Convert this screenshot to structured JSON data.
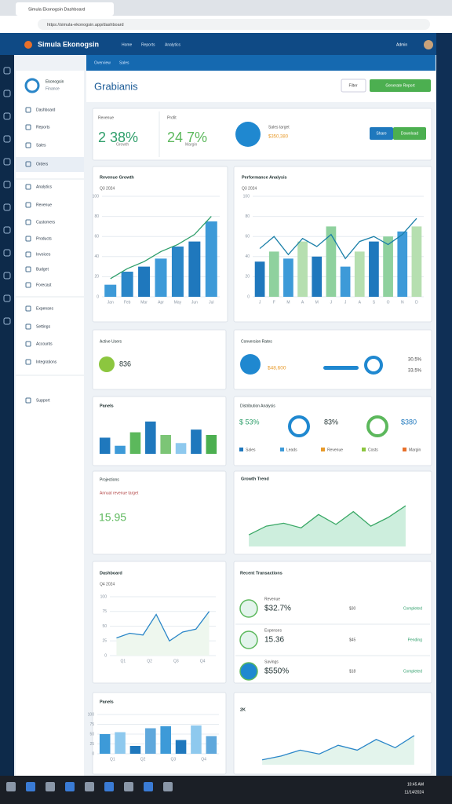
{
  "browser": {
    "tab_title": "Simula Ekonogsin Dashboard",
    "url": "https://simula-ekonogsin.app/dashboard"
  },
  "header": {
    "app_name": "Simula Ekonogsin",
    "nav": [
      "Home",
      "Reports",
      "Analytics"
    ],
    "user": "Admin"
  },
  "subnav": [
    "Overview",
    "Sales"
  ],
  "sidebar": {
    "brand": "Ekonogsin",
    "brand_sub": "Finance",
    "items": [
      "Dashboard",
      "Reports",
      "Sales",
      "Orders",
      "Analytics",
      "Revenue",
      "Customers",
      "Products",
      "Invoices",
      "Budget",
      "Forecast",
      "Expenses",
      "Settings",
      "Accounts",
      "Integrations",
      "Support"
    ]
  },
  "page": {
    "title": "Grabianis",
    "buttons": [
      "Filter",
      "Generate Report"
    ]
  },
  "kpis": {
    "items": [
      {
        "label": "Revenue",
        "value": "2 38%",
        "note": "Growth"
      },
      {
        "label": "Profit",
        "value": "24 7%",
        "note": "Margin"
      }
    ],
    "target_label": "Sales target",
    "target_value": "$350,380",
    "buttons": [
      "Share",
      "Download"
    ]
  },
  "charts": [
    {
      "type": "bar",
      "title": "Revenue Growth",
      "subtitle": "Q3 2024",
      "categories": [
        "Jan",
        "Feb",
        "Mar",
        "Apr",
        "May",
        "Jun",
        "Jul"
      ],
      "values": [
        12,
        25,
        30,
        38,
        50,
        55,
        75
      ],
      "line": [
        18,
        28,
        35,
        45,
        52,
        62,
        80
      ],
      "colors": [
        "#3d9ad8",
        "#2a86c8",
        "#1f78bd"
      ],
      "line_color": "#2e9e6a",
      "ylim": [
        0,
        100
      ],
      "yticks": [
        0,
        20,
        40,
        60,
        80,
        100
      ]
    },
    {
      "type": "bar",
      "title": "Performance Analysis",
      "subtitle": "Q3 2024",
      "categories": [
        "J",
        "F",
        "M",
        "A",
        "M",
        "J",
        "J",
        "A",
        "S",
        "O",
        "N",
        "D"
      ],
      "values": [
        35,
        45,
        38,
        55,
        40,
        70,
        30,
        45,
        55,
        60,
        65,
        70
      ],
      "line": [
        48,
        60,
        42,
        58,
        50,
        62,
        38,
        55,
        60,
        52,
        62,
        78
      ],
      "colors": [
        "#1f78bd",
        "#8fd19e",
        "#3d9ad8",
        "#b6dfb0"
      ],
      "line_color": "#1a7fa8",
      "ylim": [
        0,
        100
      ],
      "yticks": [
        0,
        20,
        40,
        60,
        80,
        100
      ]
    },
    {
      "type": "bar",
      "title": "Panels",
      "values": [
        30,
        15,
        40,
        60,
        35,
        20,
        45,
        35
      ],
      "colors": [
        "#1f78bd",
        "#3d9ad8",
        "#5cb85c",
        "#1f78bd",
        "#7cc576",
        "#8ec9ee",
        "#1f78bd",
        "#4caf50"
      ],
      "ylim": [
        0,
        70
      ]
    },
    {
      "type": "area",
      "title": "Growth Trend",
      "values": [
        20,
        35,
        40,
        32,
        55,
        38,
        60,
        35,
        50,
        70
      ],
      "fill": "#cdeedd",
      "line_color": "#3aa866",
      "ylim": [
        0,
        100
      ]
    },
    {
      "type": "area",
      "title": "Dashboard",
      "subtitle": "Q4 2024",
      "categories": [
        "Q1",
        "Q2",
        "Q3",
        "Q4"
      ],
      "values": [
        30,
        38,
        35,
        70,
        25,
        40,
        45,
        75
      ],
      "fill": "#eef7ee",
      "line_color": "#2a86c8",
      "ylim": [
        0,
        100
      ],
      "yticks": [
        0,
        25,
        50,
        75,
        100
      ]
    },
    {
      "type": "bar",
      "title": "Panels",
      "categories": [
        "Q1",
        "Q2",
        "Q3",
        "Q4"
      ],
      "values": [
        50,
        55,
        20,
        65,
        70,
        35,
        72,
        45
      ],
      "colors": [
        "#3d9ad8",
        "#8ec9ee",
        "#1f78bd",
        "#5fa8dc",
        "#3d9ad8",
        "#1f78bd",
        "#8ec9ee",
        "#5fa8dc"
      ],
      "ylim": [
        0,
        100
      ],
      "yticks": [
        0,
        25,
        50,
        75,
        100
      ]
    },
    {
      "type": "area",
      "title": "2K",
      "values": [
        10,
        18,
        30,
        22,
        40,
        30,
        52,
        35,
        60
      ],
      "fill": "#e3f4ec",
      "line_color": "#2a86c8",
      "ylim": [
        0,
        100
      ]
    }
  ],
  "cards": {
    "users": {
      "title": "Active Users",
      "value": "836"
    },
    "conversion": {
      "title": "Conversion Rates",
      "value": "$48,600",
      "stat1": "30.5%",
      "stat2": "33.5%"
    },
    "distribution": {
      "title": "Distribution Analysis",
      "value1": "$ 53%",
      "value2": "83%",
      "value3": "$380",
      "legend": [
        "Sales",
        "Leads",
        "Revenue",
        "Costs",
        "Margin"
      ]
    },
    "projection": {
      "title": "Projections",
      "subtitle": "Annual revenue target",
      "value": "15.95"
    },
    "transactions": {
      "title": "Recent Transactions",
      "rows": [
        {
          "name": "Revenue",
          "value": "$32.7%",
          "amount": "$30",
          "status": "Completed"
        },
        {
          "name": "Expenses",
          "value": "15.36",
          "amount": "$45",
          "status": "Pending"
        },
        {
          "name": "Savings",
          "value": "$550%",
          "amount": "$18",
          "status": "Completed"
        }
      ]
    }
  },
  "taskbar": {
    "time": "10:45 AM",
    "date": "11/14/2024"
  }
}
